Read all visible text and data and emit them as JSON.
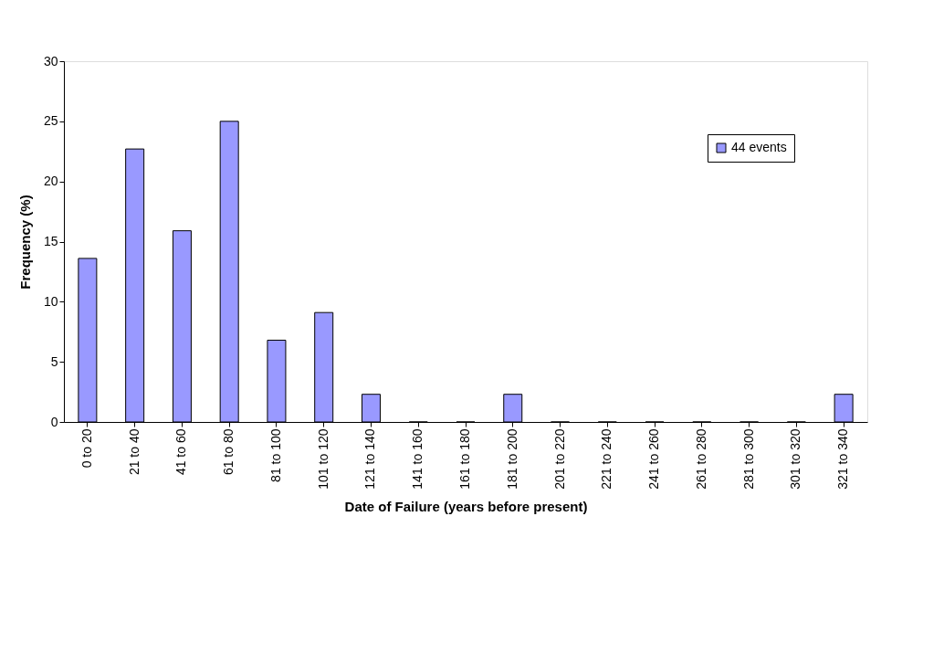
{
  "chart_data": {
    "type": "bar",
    "xlabel": "Date of Failure (years before present)",
    "ylabel": "Frequency (%)",
    "categories": [
      "0 to 20",
      "21 to 40",
      "41 to 60",
      "61 to 80",
      "81 to 100",
      "101 to 120",
      "121 to 140",
      "141 to 160",
      "161 to 180",
      "181 to 200",
      "201 to 220",
      "221 to 240",
      "241 to 260",
      "261 to 280",
      "281 to 300",
      "301 to 320",
      "321 to 340"
    ],
    "series": [
      {
        "name": "44 events",
        "color": "#9999ff",
        "values": [
          13.6,
          22.7,
          15.9,
          25,
          6.8,
          9.1,
          2.3,
          0,
          0,
          2.3,
          0,
          0,
          0,
          0,
          0,
          0,
          2.3
        ]
      }
    ],
    "ylim": [
      0,
      30
    ],
    "yticks": [
      0,
      5,
      10,
      15,
      20,
      25,
      30
    ],
    "grid": false,
    "legend": "top right"
  }
}
